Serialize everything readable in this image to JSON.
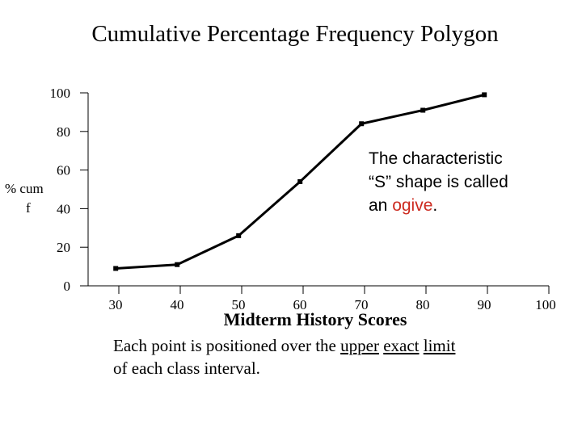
{
  "chart_data": {
    "type": "line",
    "title": "Cumulative Percentage Frequency Polygon",
    "ylabel": [
      "% cum",
      "f"
    ],
    "xlabel": "Midterm History Scores",
    "ylim": [
      0,
      100
    ],
    "yticks": [
      0,
      20,
      40,
      60,
      80,
      100
    ],
    "xlim": [
      25,
      100
    ],
    "xticks": [
      30,
      40,
      50,
      60,
      70,
      80,
      90,
      100
    ],
    "grid": false,
    "series": [
      {
        "x": [
          29.5,
          39.5,
          49.5,
          59.5,
          69.5,
          79.5,
          89.5
        ],
        "y": [
          9,
          11,
          26,
          54,
          84,
          91,
          99
        ]
      }
    ],
    "colors": {
      "line": "#000000",
      "accent": "#cc2a1f"
    }
  },
  "callout": {
    "line1": "The characteristic",
    "line2": "“S” shape is called",
    "line3_pre": "an ",
    "line3_accent": "ogive",
    "line3_post": "."
  },
  "note": {
    "part1": "Each point is positioned over the ",
    "word_upper": "upper",
    "word_exact": "exact",
    "word_limit": "limit",
    "line2": "of each class interval."
  }
}
